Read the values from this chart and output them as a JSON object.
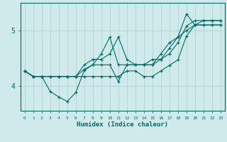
{
  "xlabel": "Humidex (Indice chaleur)",
  "xlim": [
    -0.5,
    23.5
  ],
  "ylim": [
    3.55,
    5.5
  ],
  "yticks": [
    4,
    5
  ],
  "xticks": [
    0,
    1,
    2,
    3,
    4,
    5,
    6,
    7,
    8,
    9,
    10,
    11,
    12,
    13,
    14,
    15,
    16,
    17,
    18,
    19,
    20,
    21,
    22,
    23
  ],
  "bg_color": "#ceeaea",
  "line_color": "#006b6b",
  "grid_color": "#add4d4",
  "curves": [
    [
      4.27,
      4.17,
      4.17,
      3.9,
      3.8,
      3.72,
      3.88,
      4.28,
      4.38,
      4.38,
      4.38,
      4.08,
      4.38,
      4.38,
      4.38,
      4.38,
      4.48,
      4.58,
      4.78,
      5.08,
      5.18,
      5.18,
      5.18,
      5.18
    ],
    [
      4.27,
      4.17,
      4.17,
      4.17,
      4.17,
      4.17,
      4.17,
      4.3,
      4.38,
      4.58,
      4.88,
      4.38,
      4.38,
      4.38,
      4.38,
      4.38,
      4.58,
      4.78,
      4.88,
      5.0,
      5.1,
      5.1,
      5.1,
      5.1
    ],
    [
      4.27,
      4.17,
      4.17,
      4.17,
      4.17,
      4.17,
      4.17,
      4.38,
      4.48,
      4.48,
      4.58,
      4.88,
      4.48,
      4.38,
      4.38,
      4.48,
      4.48,
      4.68,
      4.88,
      5.3,
      5.1,
      5.18,
      5.18,
      5.18
    ],
    [
      4.27,
      4.17,
      4.17,
      4.17,
      4.17,
      4.17,
      4.17,
      4.17,
      4.17,
      4.17,
      4.17,
      4.17,
      4.27,
      4.27,
      4.17,
      4.17,
      4.27,
      4.37,
      4.47,
      4.9,
      5.1,
      5.1,
      5.1,
      5.1
    ]
  ]
}
